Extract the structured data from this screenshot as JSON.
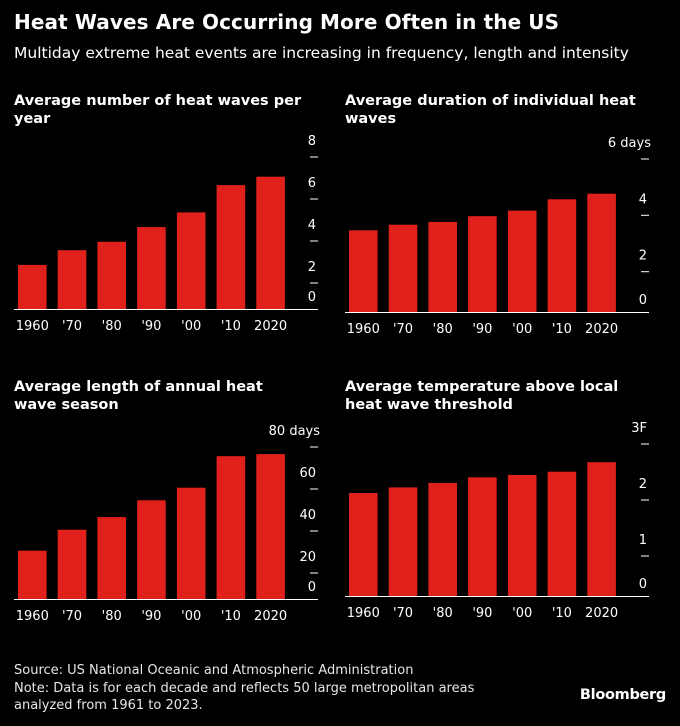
{
  "header": {
    "title": "Heat Waves Are Occurring More Often in the US",
    "subtitle": "Multiday extreme heat events are increasing in frequency, length and intensity"
  },
  "footer": {
    "source": "Source: US National Oceanic and Atmospheric Administration",
    "note_line1": "Note: Data is for each decade and reflects 50 large metropolitan areas",
    "note_line2": "analyzed from 1961 to 2023."
  },
  "brand": "Bloomberg",
  "colors": {
    "bar": "#e0201b",
    "background": "#000000",
    "axis": "#ffffff"
  },
  "chart_data": [
    {
      "type": "bar",
      "title_lines": [
        "Average number of heat waves per",
        "year"
      ],
      "categories": [
        "1960",
        "'70",
        "'80",
        "'90",
        "'00",
        "'10",
        "2020"
      ],
      "values": [
        2.1,
        2.8,
        3.2,
        3.9,
        4.6,
        5.9,
        6.3
      ],
      "ylim": [
        0,
        8
      ],
      "yticks": [
        0,
        2,
        4,
        6,
        8
      ],
      "ytick_labels": [
        "0",
        "2",
        "4",
        "6",
        "8"
      ]
    },
    {
      "type": "bar",
      "title_lines": [
        "Average duration of individual heat",
        "waves"
      ],
      "categories": [
        "1960",
        "'70",
        "'80",
        "'90",
        "'00",
        "'10",
        "2020"
      ],
      "values": [
        2.9,
        3.1,
        3.2,
        3.4,
        3.6,
        4.0,
        4.2
      ],
      "ylim": [
        0,
        6
      ],
      "yticks": [
        0,
        2,
        4,
        6
      ],
      "ytick_labels": [
        "0",
        "2",
        "4",
        "6 days"
      ]
    },
    {
      "type": "bar",
      "title_lines": [
        "Average length of annual heat",
        "wave season"
      ],
      "categories": [
        "1960",
        "'70",
        "'80",
        "'90",
        "'00",
        "'10",
        "2020"
      ],
      "values": [
        23,
        33,
        39,
        47,
        53,
        68,
        69
      ],
      "ylim": [
        0,
        80
      ],
      "yticks": [
        0,
        20,
        40,
        60,
        80
      ],
      "ytick_labels": [
        "0",
        "20",
        "40",
        "60",
        "80 days"
      ]
    },
    {
      "type": "bar",
      "title_lines": [
        "Average temperature above local",
        "heat wave threshold"
      ],
      "categories": [
        "1960",
        "'70",
        "'80",
        "'90",
        "'00",
        "'10",
        "2020"
      ],
      "values": [
        1.84,
        1.94,
        2.02,
        2.12,
        2.16,
        2.22,
        2.39
      ],
      "ylim": [
        0,
        3
      ],
      "yticks": [
        0,
        1,
        2,
        3
      ],
      "ytick_labels": [
        "0",
        "1",
        "2",
        "3F"
      ]
    }
  ]
}
